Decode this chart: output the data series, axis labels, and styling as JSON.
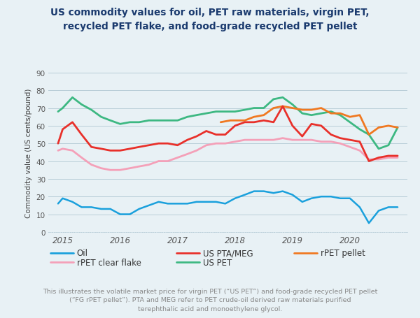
{
  "title": "US commodity values for oil, PET raw materials, virgin PET,\nrecycled PET flake, and food-grade recycled PET pellet",
  "ylabel": "Commodity value (US cents/pound)",
  "background_color": "#e8f1f5",
  "plot_bg_color": "#e8f1f5",
  "ylim": [
    0,
    90
  ],
  "yticks": [
    0,
    10,
    20,
    30,
    40,
    50,
    60,
    70,
    80,
    90
  ],
  "footnote": "This illustrates the volatile market price for virgin PET (“US PET”) and food-grade recycled PET pellet\n(“FG rPET pellet”). PTA and MEG refer to PET crude-oil derived raw materials purified\nterephthalic acid and monoethylene glycol.",
  "series": {
    "Oil": {
      "color": "#1aa0dc",
      "linewidth": 1.8,
      "x": [
        2014.92,
        2015.0,
        2015.17,
        2015.33,
        2015.5,
        2015.67,
        2015.83,
        2016.0,
        2016.17,
        2016.33,
        2016.5,
        2016.67,
        2016.83,
        2017.0,
        2017.17,
        2017.33,
        2017.5,
        2017.67,
        2017.83,
        2018.0,
        2018.17,
        2018.33,
        2018.5,
        2018.67,
        2018.83,
        2019.0,
        2019.17,
        2019.33,
        2019.5,
        2019.67,
        2019.83,
        2020.0,
        2020.17,
        2020.33,
        2020.5,
        2020.67,
        2020.83
      ],
      "y": [
        16,
        19,
        17,
        14,
        14,
        13,
        13,
        10,
        10,
        13,
        15,
        17,
        16,
        16,
        16,
        17,
        17,
        17,
        16,
        19,
        21,
        23,
        23,
        22,
        23,
        21,
        17,
        19,
        20,
        20,
        19,
        19,
        14,
        5,
        12,
        14,
        14
      ]
    },
    "US PTA/MEG": {
      "color": "#e8302a",
      "linewidth": 2.0,
      "x": [
        2014.92,
        2015.0,
        2015.17,
        2015.33,
        2015.5,
        2015.67,
        2015.83,
        2016.0,
        2016.17,
        2016.33,
        2016.5,
        2016.67,
        2016.83,
        2017.0,
        2017.17,
        2017.33,
        2017.5,
        2017.67,
        2017.83,
        2018.0,
        2018.17,
        2018.33,
        2018.5,
        2018.67,
        2018.83,
        2019.0,
        2019.17,
        2019.33,
        2019.5,
        2019.67,
        2019.83,
        2020.0,
        2020.17,
        2020.33,
        2020.5,
        2020.67,
        2020.83
      ],
      "y": [
        50,
        58,
        62,
        55,
        48,
        47,
        46,
        46,
        47,
        48,
        49,
        50,
        50,
        49,
        52,
        54,
        57,
        55,
        55,
        60,
        62,
        62,
        63,
        62,
        71,
        60,
        54,
        61,
        60,
        55,
        53,
        52,
        51,
        40,
        42,
        43,
        43
      ]
    },
    "rPET pellet": {
      "color": "#f07820",
      "linewidth": 2.0,
      "x": [
        2017.75,
        2017.92,
        2018.0,
        2018.17,
        2018.33,
        2018.5,
        2018.67,
        2018.83,
        2019.0,
        2019.17,
        2019.33,
        2019.5,
        2019.67,
        2019.83,
        2020.0,
        2020.17,
        2020.33,
        2020.5,
        2020.67,
        2020.83
      ],
      "y": [
        62,
        63,
        63,
        63,
        65,
        66,
        70,
        71,
        70,
        69,
        69,
        70,
        67,
        67,
        65,
        66,
        55,
        59,
        60,
        59
      ]
    },
    "rPET clear flake": {
      "color": "#f4a0b8",
      "linewidth": 2.0,
      "x": [
        2014.92,
        2015.0,
        2015.17,
        2015.33,
        2015.5,
        2015.67,
        2015.83,
        2016.0,
        2016.17,
        2016.33,
        2016.5,
        2016.67,
        2016.83,
        2017.0,
        2017.17,
        2017.33,
        2017.5,
        2017.67,
        2017.83,
        2018.0,
        2018.17,
        2018.33,
        2018.5,
        2018.67,
        2018.83,
        2019.0,
        2019.17,
        2019.33,
        2019.5,
        2019.67,
        2019.83,
        2020.0,
        2020.17,
        2020.33,
        2020.5,
        2020.67,
        2020.83
      ],
      "y": [
        46,
        47,
        46,
        42,
        38,
        36,
        35,
        35,
        36,
        37,
        38,
        40,
        40,
        42,
        44,
        46,
        49,
        50,
        50,
        51,
        52,
        52,
        52,
        52,
        53,
        52,
        52,
        52,
        51,
        51,
        50,
        48,
        46,
        41,
        41,
        42,
        42
      ]
    },
    "US PET": {
      "color": "#3db882",
      "linewidth": 2.0,
      "x": [
        2014.92,
        2015.0,
        2015.17,
        2015.33,
        2015.5,
        2015.67,
        2015.83,
        2016.0,
        2016.17,
        2016.33,
        2016.5,
        2016.67,
        2016.83,
        2017.0,
        2017.17,
        2017.33,
        2017.5,
        2017.67,
        2017.83,
        2018.0,
        2018.17,
        2018.33,
        2018.5,
        2018.67,
        2018.83,
        2019.0,
        2019.17,
        2019.33,
        2019.5,
        2019.67,
        2019.83,
        2020.0,
        2020.17,
        2020.33,
        2020.5,
        2020.67,
        2020.83
      ],
      "y": [
        68,
        70,
        76,
        72,
        69,
        65,
        63,
        61,
        62,
        62,
        63,
        63,
        63,
        63,
        65,
        66,
        67,
        68,
        68,
        68,
        69,
        70,
        70,
        75,
        76,
        72,
        67,
        66,
        67,
        68,
        66,
        62,
        58,
        55,
        47,
        49,
        59
      ]
    }
  },
  "xtick_positions": [
    2015,
    2016,
    2017,
    2018,
    2019,
    2020
  ],
  "xtick_labels": [
    "2015",
    "2016",
    "2017",
    "2018",
    "2019",
    "2020"
  ],
  "grid_color": "#b8cdd8",
  "title_color": "#1a3a6e",
  "ylabel_color": "#444444",
  "tick_color": "#555555",
  "footnote_color": "#888888"
}
